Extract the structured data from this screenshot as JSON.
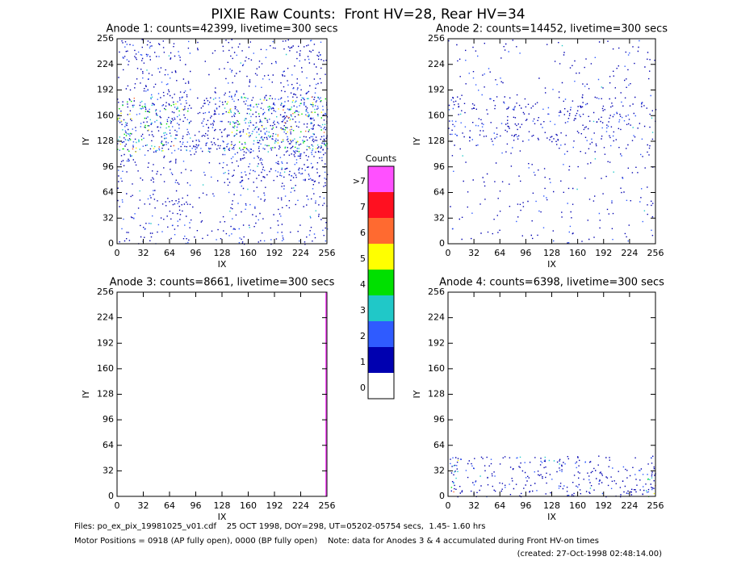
{
  "title": "PIXIE Raw Counts:  Front HV=28, Rear HV=34",
  "chart_data": [
    {
      "type": "heatmap",
      "title": "Anode 1: counts=42399, livetime=300 secs",
      "xlabel": "IX",
      "ylabel": "IY",
      "xlim": [
        0,
        256
      ],
      "ylim": [
        0,
        256
      ],
      "xticks": [
        0,
        32,
        64,
        96,
        128,
        160,
        192,
        224,
        256
      ],
      "yticks": [
        0,
        32,
        64,
        96,
        128,
        160,
        192,
        224,
        256
      ]
    },
    {
      "type": "heatmap",
      "title": "Anode 2: counts=14452, livetime=300 secs",
      "xlabel": "IX",
      "ylabel": "IY",
      "xlim": [
        0,
        256
      ],
      "ylim": [
        0,
        256
      ],
      "xticks": [
        0,
        32,
        64,
        96,
        128,
        160,
        192,
        224,
        256
      ],
      "yticks": [
        0,
        32,
        64,
        96,
        128,
        160,
        192,
        224,
        256
      ]
    },
    {
      "type": "heatmap",
      "title": "Anode 3: counts=8661, livetime=300 secs",
      "xlabel": "IX",
      "ylabel": "IY",
      "xlim": [
        0,
        256
      ],
      "ylim": [
        0,
        256
      ],
      "xticks": [
        0,
        32,
        64,
        96,
        128,
        160,
        192,
        224,
        256
      ],
      "yticks": [
        0,
        32,
        64,
        96,
        128,
        160,
        192,
        224,
        256
      ]
    },
    {
      "type": "heatmap",
      "title": "Anode 4: counts=6398, livetime=300 secs",
      "xlabel": "IX",
      "ylabel": "IY",
      "xlim": [
        0,
        256
      ],
      "ylim": [
        0,
        256
      ],
      "xticks": [
        0,
        32,
        64,
        96,
        128,
        160,
        192,
        224,
        256
      ],
      "yticks": [
        0,
        32,
        64,
        96,
        128,
        160,
        192,
        224,
        256
      ]
    }
  ],
  "colorbar": {
    "title": "Counts",
    "levels": [
      "0",
      "1",
      "2",
      "3",
      "4",
      "5",
      "6",
      "7",
      ">7"
    ],
    "colors": [
      "#ffffff",
      "#0000b0",
      "#2f5bff",
      "#20c8c8",
      "#00e000",
      "#ffff00",
      "#ff6a30",
      "#ff1020",
      "#ff50ff"
    ]
  },
  "footer": {
    "files": "Files: po_ex_pix_19981025_v01.cdf    25 OCT 1998, DOY=298, UT=05202-05754 secs,  1.45- 1.60 hrs",
    "motor": "Motor Positions = 0918 (AP fully open), 0000 (BP fully open)    Note: data for Anodes 3 & 4 accumulated during Front HV-on times",
    "created": "(created: 27-Oct-1998 02:48:14.00)"
  }
}
